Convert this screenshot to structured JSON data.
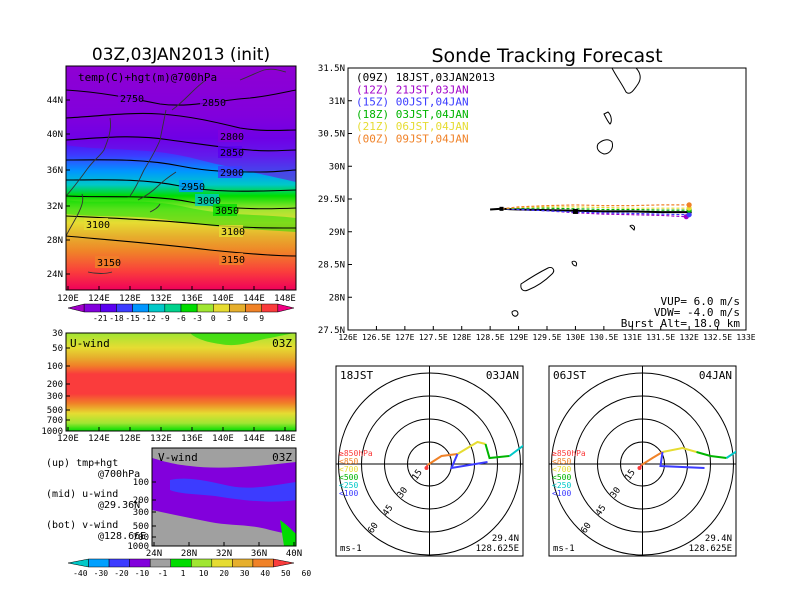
{
  "left_panel": {
    "title": "03Z,03JAN2013 (init)",
    "map_label": "temp(C)+hgt(m)@700hPa",
    "lat_ticks": [
      "44N",
      "40N",
      "36N",
      "32N",
      "28N",
      "24N"
    ],
    "lon_ticks": [
      "120E",
      "124E",
      "128E",
      "132E",
      "136E",
      "140E",
      "144E",
      "148E"
    ],
    "height_contours": [
      "2750",
      "2850",
      "2800",
      "2850",
      "2900",
      "2950",
      "3000",
      "3050",
      "3100",
      "3100",
      "3150",
      "3150"
    ],
    "temp_colorbar": {
      "labels": [
        "-21",
        "-18",
        "-15",
        "-12",
        "-9",
        "-6",
        "-3",
        "0",
        "3",
        "6",
        "9"
      ],
      "colors": [
        "#a000c8",
        "#8200dc",
        "#5a00f0",
        "#3c3cff",
        "#0096ff",
        "#00c8c8",
        "#00d28c",
        "#00dc00",
        "#a0e632",
        "#e6dc32",
        "#e6af2d",
        "#f08228",
        "#fa3c3c",
        "#f00082"
      ]
    },
    "u_wind": {
      "label": "U-wind",
      "time": "03Z",
      "p_ticks": [
        "30",
        "50",
        "100",
        "200",
        "300",
        "500",
        "700",
        "1000"
      ]
    },
    "v_wind": {
      "label": "V-wind",
      "time": "03Z",
      "p_ticks": [
        "100",
        "200",
        "300",
        "500",
        "700",
        "1000"
      ],
      "lat_ticks": [
        "24N",
        "28N",
        "32N",
        "36N",
        "40N"
      ]
    },
    "notes": [
      {
        "line1": "(up) tmp+hgt",
        "line2": "@700hPa"
      },
      {
        "line1": "(mid) u-wind",
        "line2": "@29.36N"
      },
      {
        "line1": "(bot) v-wind",
        "line2": "@128.66E"
      }
    ],
    "wind_colorbar": {
      "labels": [
        "-40",
        "-30",
        "-20",
        "-10",
        "-1",
        "1",
        "10",
        "20",
        "30",
        "40",
        "50",
        "60"
      ],
      "colors": [
        "#00c8c8",
        "#00a0ff",
        "#3c3cff",
        "#8200dc",
        "#a0a0a0",
        "#00dc00",
        "#a0e632",
        "#e6dc32",
        "#e6af2d",
        "#f08228",
        "#fa3c3c"
      ]
    }
  },
  "tracking": {
    "title": "Sonde Tracking Forecast",
    "lat_ticks": [
      "31.5N",
      "31N",
      "30.5N",
      "30N",
      "29.5N",
      "29N",
      "28.5N",
      "28N",
      "27.5N"
    ],
    "lon_ticks": [
      "126E",
      "126.5E",
      "127E",
      "127.5E",
      "128E",
      "128.5E",
      "129E",
      "129.5E",
      "130E",
      "130.5E",
      "131E",
      "131.5E",
      "132E",
      "132.5E",
      "133E"
    ],
    "legend": [
      {
        "label": "(09Z)  18JST,03JAN2013",
        "color": "#000000"
      },
      {
        "label": "(12Z)  21JST,03JAN",
        "color": "#a000c8"
      },
      {
        "label": "(15Z)  00JST,04JAN",
        "color": "#3c3cff"
      },
      {
        "label": "(18Z)  03JST,04JAN",
        "color": "#00b400"
      },
      {
        "label": "(21Z)  06JST,04JAN",
        "color": "#e6dc32"
      },
      {
        "label": "(00Z)  09JST,04JAN",
        "color": "#f08228"
      }
    ],
    "info": {
      "vup": "VUP=  6.0  m/s",
      "vdw": "VDW= -4.0  m/s",
      "burst": "Burst Alt=  18.0  km"
    }
  },
  "hodographs": [
    {
      "left_label": "18JST",
      "right_label": "03JAN",
      "rings": [
        "15",
        "30",
        "45",
        "60"
      ],
      "legend": [
        {
          "label": "≥850hPa",
          "color": "#fa3c3c"
        },
        {
          "label": "<850",
          "color": "#f08228"
        },
        {
          "label": "<700",
          "color": "#e6dc32"
        },
        {
          "label": "<500",
          "color": "#00b400"
        },
        {
          "label": "<250",
          "color": "#00c8c8"
        },
        {
          "label": "<100",
          "color": "#3c3cff"
        }
      ],
      "unit": "ms-1",
      "lat": "29.4N",
      "lon": "128.625E"
    },
    {
      "left_label": "06JST",
      "right_label": "04JAN",
      "rings": [
        "15",
        "30",
        "45",
        "60"
      ],
      "legend": [
        {
          "label": "≥850hPa",
          "color": "#fa3c3c"
        },
        {
          "label": "<850",
          "color": "#f08228"
        },
        {
          "label": "<700",
          "color": "#e6dc32"
        },
        {
          "label": "<500",
          "color": "#00b400"
        },
        {
          "label": "<250",
          "color": "#00c8c8"
        },
        {
          "label": "<100",
          "color": "#3c3cff"
        }
      ],
      "unit": "ms-1",
      "lat": "29.4N",
      "lon": "128.625E"
    }
  ],
  "chart_data": {
    "type": "line",
    "title": "Sonde Tracking Forecast",
    "xlim": [
      126,
      133
    ],
    "ylim": [
      27.5,
      31.5
    ],
    "launch": {
      "lon": 128.7,
      "lat": 29.35
    },
    "series": [
      {
        "name": "(09Z)  18JST,03JAN2013",
        "color": "#000000",
        "x": [
          128.5,
          128.7,
          129.0,
          129.5,
          130.0,
          130.5,
          131.0,
          131.5,
          132.0
        ],
        "y": [
          29.34,
          29.35,
          29.34,
          29.33,
          29.32,
          29.31,
          29.31,
          29.3,
          29.3
        ]
      },
      {
        "name": "(12Z)  21JST,03JAN",
        "color": "#a000c8",
        "x": [
          128.7,
          129.0,
          129.5,
          130.0,
          130.5,
          131.0,
          131.5,
          131.95
        ],
        "y": [
          29.35,
          29.34,
          29.32,
          29.29,
          29.27,
          29.26,
          29.25,
          29.23
        ]
      },
      {
        "name": "(15Z)  00JST,04JAN",
        "color": "#3c3cff",
        "x": [
          128.7,
          129.0,
          129.5,
          130.0,
          130.5,
          131.0,
          131.5,
          132.0
        ],
        "y": [
          29.35,
          29.34,
          29.32,
          29.3,
          29.29,
          29.28,
          29.27,
          29.26
        ]
      },
      {
        "name": "(18Z)  03JST,04JAN",
        "color": "#00b400",
        "x": [
          128.7,
          129.0,
          129.5,
          130.0,
          130.5,
          131.0,
          131.5,
          132.0
        ],
        "y": [
          29.35,
          29.36,
          29.36,
          29.35,
          29.34,
          29.34,
          29.33,
          29.33
        ]
      },
      {
        "name": "(21Z)  06JST,04JAN",
        "color": "#e6dc32",
        "x": [
          128.7,
          129.0,
          129.5,
          130.0,
          130.5,
          131.0,
          131.5,
          132.0
        ],
        "y": [
          29.35,
          29.37,
          29.38,
          29.38,
          29.37,
          29.36,
          29.36,
          29.36
        ]
      },
      {
        "name": "(00Z)  09JST,04JAN",
        "color": "#f08228",
        "x": [
          128.7,
          129.0,
          129.5,
          130.0,
          130.5,
          131.0,
          131.5,
          132.0
        ],
        "y": [
          29.35,
          29.38,
          29.4,
          29.41,
          29.4,
          29.4,
          29.41,
          29.41
        ]
      }
    ]
  }
}
